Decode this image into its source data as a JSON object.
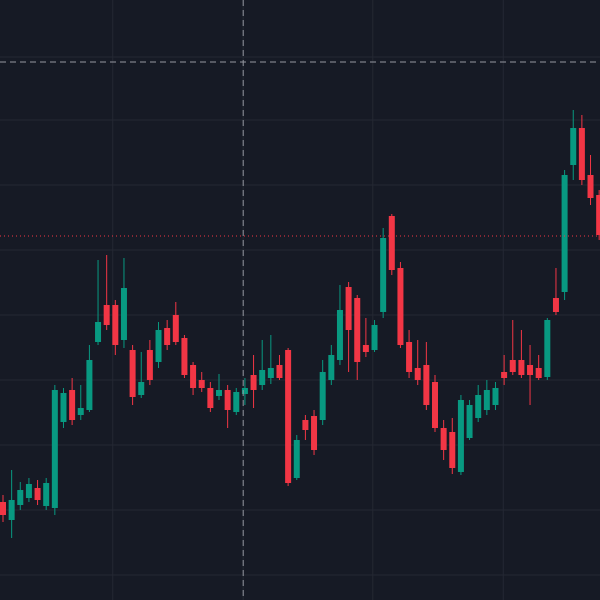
{
  "chart_data": {
    "type": "candlestick",
    "open": [
      98,
      80,
      95,
      102,
      112,
      94,
      92,
      178,
      210,
      185,
      190,
      258,
      295,
      295,
      260,
      250,
      205,
      250,
      238,
      272,
      285,
      262,
      235,
      220,
      212,
      204,
      210,
      188,
      206,
      225,
      215,
      222,
      235,
      250,
      122,
      180,
      184,
      180,
      220,
      240,
      313,
      302,
      255,
      250,
      288,
      384,
      332,
      258,
      232,
      235,
      218,
      172,
      168,
      128,
      162,
      182,
      190,
      195,
      228,
      240,
      240,
      235,
      232,
      223,
      302,
      308,
      435,
      472,
      425,
      405
    ],
    "high": [
      105,
      130,
      118,
      122,
      120,
      122,
      215,
      212,
      222,
      215,
      255,
      340,
      345,
      300,
      342,
      255,
      248,
      260,
      278,
      280,
      298,
      265,
      238,
      228,
      218,
      226,
      215,
      212,
      222,
      245,
      260,
      265,
      245,
      252,
      165,
      185,
      190,
      240,
      255,
      315,
      318,
      305,
      282,
      280,
      372,
      386,
      338,
      270,
      260,
      258,
      225,
      180,
      182,
      205,
      200,
      215,
      220,
      218,
      245,
      280,
      270,
      255,
      245,
      282,
      332,
      430,
      490,
      485,
      445,
      410
    ],
    "low": [
      78,
      62,
      90,
      98,
      95,
      90,
      85,
      172,
      175,
      180,
      188,
      255,
      270,
      245,
      252,
      195,
      202,
      215,
      232,
      250,
      255,
      222,
      205,
      208,
      188,
      200,
      172,
      185,
      195,
      192,
      210,
      216,
      220,
      114,
      120,
      160,
      145,
      175,
      215,
      235,
      228,
      220,
      243,
      248,
      282,
      325,
      252,
      222,
      215,
      190,
      168,
      140,
      126,
      125,
      160,
      178,
      185,
      190,
      215,
      225,
      222,
      195,
      220,
      220,
      285,
      300,
      420,
      415,
      395,
      360
    ],
    "close": [
      85,
      100,
      110,
      116,
      100,
      117,
      210,
      207,
      180,
      192,
      240,
      278,
      275,
      255,
      312,
      203,
      218,
      220,
      270,
      255,
      258,
      225,
      212,
      212,
      192,
      210,
      190,
      208,
      212,
      210,
      230,
      232,
      222,
      117,
      160,
      170,
      150,
      228,
      245,
      290,
      270,
      238,
      248,
      275,
      362,
      330,
      255,
      228,
      220,
      195,
      172,
      150,
      132,
      200,
      195,
      205,
      210,
      212,
      222,
      228,
      225,
      225,
      222,
      280,
      288,
      425,
      472,
      420,
      402,
      365
    ],
    "up_color": "#089981",
    "down_color": "#f23645",
    "ylim": [
      0,
      600
    ],
    "ygrid": [
      543,
      480,
      415,
      350,
      285,
      220,
      155,
      90,
      25
    ],
    "xgrid": [
      12.7,
      27.8,
      42.8,
      57.9
    ],
    "crosshair": {
      "x": 27.8,
      "y": 538
    },
    "last_price": 364
  }
}
